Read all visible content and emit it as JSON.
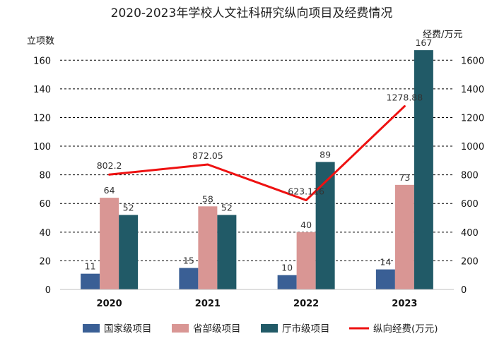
{
  "chart_data": {
    "type": "bar",
    "title": "2020-2023年学校人文社科研究纵向项目及经费情况",
    "ylabel": "立项数",
    "y2label": "经费/万元",
    "ylim": [
      0,
      170
    ],
    "y2lim": [
      0,
      1700
    ],
    "yticks": [
      0,
      20,
      40,
      60,
      80,
      100,
      120,
      140,
      160
    ],
    "y2ticks": [
      0,
      200,
      400,
      600,
      800,
      1000,
      1200,
      1400,
      1600
    ],
    "categories": [
      "2020",
      "2021",
      "2022",
      "2023"
    ],
    "grid": true,
    "legend_position": "bottom",
    "series": [
      {
        "name": "国家级项目",
        "type": "bar",
        "axis": "left",
        "color": "#3a5f95",
        "values": [
          11,
          15,
          10,
          14
        ],
        "labels": [
          "11",
          "15",
          "10",
          "14"
        ]
      },
      {
        "name": "省部级项目",
        "type": "bar",
        "axis": "left",
        "color": "#d99694",
        "values": [
          64,
          58,
          40,
          73
        ],
        "labels": [
          "64",
          "58",
          "40",
          "73"
        ]
      },
      {
        "name": "厅市级项目",
        "type": "bar",
        "axis": "left",
        "color": "#215a67",
        "values": [
          52,
          52,
          89,
          167
        ],
        "labels": [
          "52",
          "52",
          "89",
          "167"
        ]
      },
      {
        "name": "纵向经费(万元)",
        "type": "line",
        "axis": "right",
        "color": "#ee1111",
        "values": [
          802.2,
          872.05,
          623.116,
          1278.88
        ],
        "labels": [
          "802.2",
          "872.05",
          "623.116",
          "1278.88"
        ]
      }
    ]
  }
}
